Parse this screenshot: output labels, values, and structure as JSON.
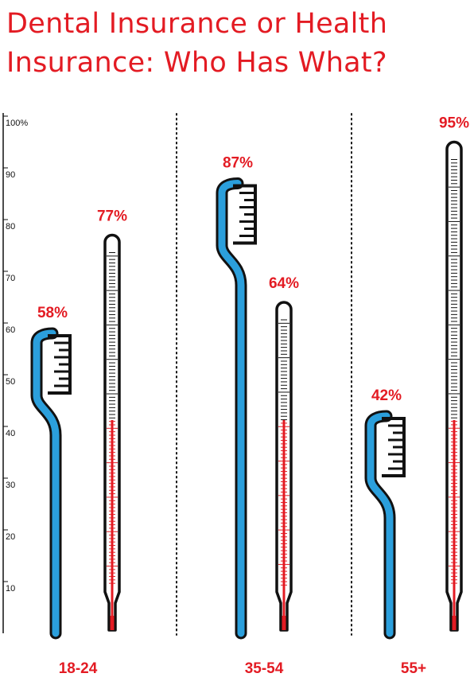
{
  "title_lines": [
    "Dental Insurance or Health",
    "Insurance: Who Has What?"
  ],
  "colors": {
    "title": "#e31b23",
    "labels": "#e31b23",
    "dental": "#2b9fdc",
    "outline": "#111111",
    "mercury": "#e31b23"
  },
  "chart_data": {
    "type": "bar",
    "title": "Dental Insurance or Health Insurance: Who Has What?",
    "categories": [
      "18-24",
      "35-54",
      "55+"
    ],
    "series": [
      {
        "icon": "toothbrush-icon",
        "values": [
          58,
          87,
          42
        ],
        "labels": [
          "58%",
          "87%",
          "42%"
        ]
      },
      {
        "icon": "thermometer-icon",
        "values": [
          77,
          64,
          95
        ],
        "labels": [
          "77%",
          "64%",
          "95%"
        ]
      }
    ],
    "ylim": [
      0,
      100
    ],
    "yticks": [
      "100%",
      "90",
      "80",
      "70",
      "60",
      "50",
      "40",
      "30",
      "20",
      "10"
    ],
    "ytick_values": [
      100,
      90,
      80,
      70,
      60,
      50,
      40,
      30,
      20,
      10
    ],
    "grid": false
  }
}
